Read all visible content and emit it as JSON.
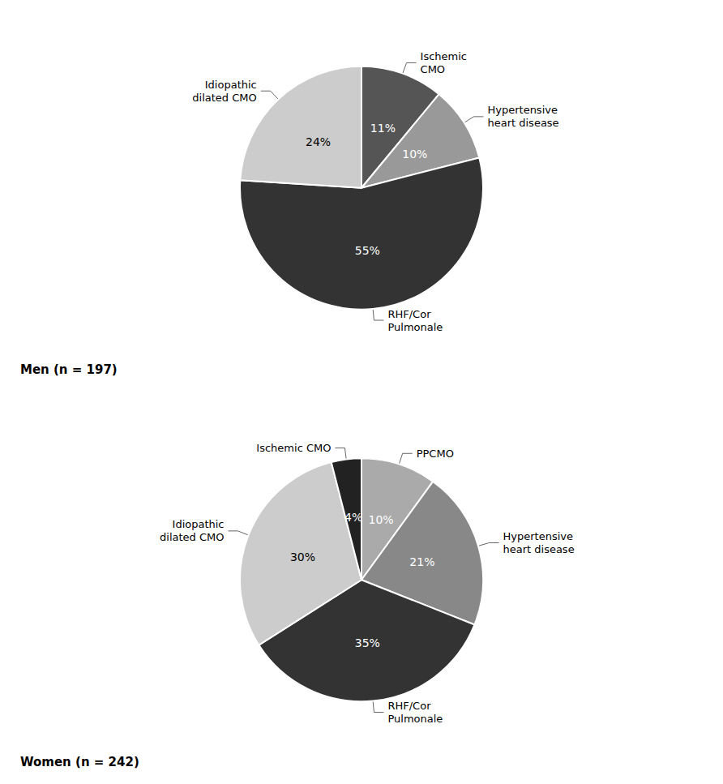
{
  "chart_data": [
    {
      "type": "pie",
      "title": "Men (n = 197)",
      "categories": [
        "Ischemic\nCMO",
        "Hypertensive\nheart disease",
        "RHF/Cor\nPulmonale",
        "Idiopathic\ndilated CMO"
      ],
      "values": [
        11,
        10,
        55,
        24
      ],
      "value_labels": [
        "11%",
        "10%",
        "55%",
        "24%"
      ],
      "colors": [
        "#555555",
        "#999999",
        "#333333",
        "#cccccc"
      ],
      "data_labels": true
    },
    {
      "type": "pie",
      "title": "Women (n = 242)",
      "categories": [
        "PPCMO",
        "Hypertensive\nheart disease",
        "RHF/Cor\nPulmonale",
        "Idiopathic\ndilated CMO",
        "Ischemic CMO"
      ],
      "values": [
        10,
        21,
        35,
        30,
        4
      ],
      "value_labels": [
        "10%",
        "21%",
        "35%",
        "30%",
        "4%"
      ],
      "colors": [
        "#aaaaaa",
        "#888888",
        "#333333",
        "#cccccc",
        "#222222"
      ],
      "data_labels": true
    }
  ]
}
